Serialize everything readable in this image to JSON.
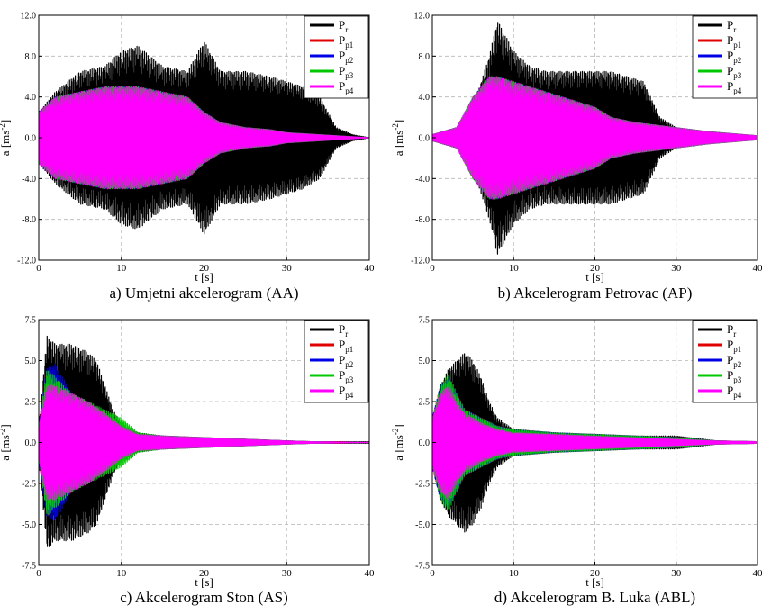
{
  "chart_data": [
    {
      "type": "line",
      "caption": "a) Umjetni akcelerogram (AA)",
      "xlabel": "t [s]",
      "ylabel": "a [ms",
      "ylabel_sup": "-2",
      "ylabel_end": "]",
      "xlim": [
        0,
        40
      ],
      "ylim": [
        -12,
        12
      ],
      "xticks": [
        "0",
        "10",
        "20",
        "30",
        "40"
      ],
      "yticks": [
        "12.0",
        "8.0",
        "4.0",
        "0.0",
        "-4.0",
        "-8.0",
        "-12.0"
      ],
      "grid": true,
      "legend": "top-right",
      "series": [
        {
          "name": "P",
          "sub": "r",
          "color": "#000000",
          "t": [
            0,
            2,
            5,
            8,
            10,
            12,
            15,
            18,
            20,
            22,
            25,
            28,
            30,
            32,
            34,
            36,
            38,
            40
          ],
          "amplitude": [
            2.5,
            4.5,
            6.5,
            7,
            8.5,
            9,
            7,
            6.5,
            9.5,
            6.5,
            6.5,
            6,
            5.5,
            5,
            4,
            1,
            0.3,
            0
          ]
        },
        {
          "name": "P",
          "sub": "p1",
          "color": "#e00000",
          "t": [
            0,
            2,
            5,
            8,
            10,
            12,
            15,
            18,
            20,
            22,
            25,
            28,
            30,
            34,
            36,
            40
          ],
          "amplitude": [
            2.5,
            4,
            4.5,
            5,
            5,
            5,
            4.5,
            4,
            2.5,
            1.5,
            1,
            0.8,
            0.5,
            0.3,
            0.2,
            0
          ]
        },
        {
          "name": "P",
          "sub": "p2",
          "color": "#0000e6",
          "t": [
            0,
            2,
            5,
            8,
            10,
            12,
            15,
            18,
            20,
            22,
            25,
            28,
            30,
            34,
            36,
            40
          ],
          "amplitude": [
            2.5,
            4,
            4.5,
            5,
            5,
            5,
            4.5,
            4,
            2.5,
            1.5,
            1,
            0.8,
            0.5,
            0.3,
            0.2,
            0
          ]
        },
        {
          "name": "P",
          "sub": "p3",
          "color": "#00c800",
          "t": [
            0,
            2,
            5,
            8,
            10,
            12,
            15,
            18,
            20,
            22,
            25,
            28,
            30,
            34,
            36,
            40
          ],
          "amplitude": [
            2.5,
            4,
            4.5,
            5,
            5,
            5,
            4.5,
            4,
            2.5,
            1.5,
            1,
            0.8,
            0.5,
            0.3,
            0.2,
            0
          ]
        },
        {
          "name": "P",
          "sub": "p4",
          "color": "#ff00ff",
          "t": [
            0,
            2,
            5,
            8,
            10,
            12,
            15,
            18,
            20,
            22,
            25,
            28,
            30,
            34,
            36,
            40
          ],
          "amplitude": [
            2.5,
            4,
            4.5,
            5,
            5,
            5,
            4.5,
            4,
            2.5,
            1.5,
            1,
            0.8,
            0.5,
            0.3,
            0.2,
            0
          ]
        }
      ]
    },
    {
      "type": "line",
      "caption": "b) Akcelerogram Petrovac (AP)",
      "xlabel": "t [s]",
      "ylabel": "a [ms",
      "ylabel_sup": "-2",
      "ylabel_end": "]",
      "xlim": [
        0,
        40
      ],
      "ylim": [
        -12,
        12
      ],
      "xticks": [
        "0",
        "10",
        "20",
        "30",
        "40"
      ],
      "yticks": [
        "12.0",
        "8.0",
        "4.0",
        "0.0",
        "-4.0",
        "-8.0",
        "-12.0"
      ],
      "grid": true,
      "legend": "top-right",
      "series": [
        {
          "name": "P",
          "sub": "r",
          "color": "#000000",
          "t": [
            0,
            3,
            5,
            7,
            8,
            10,
            12,
            14,
            16,
            18,
            20,
            22,
            24,
            26,
            28,
            30,
            34,
            40
          ],
          "amplitude": [
            0.3,
            1,
            3,
            8,
            11.5,
            8.5,
            7,
            6.5,
            6.5,
            6.5,
            6.5,
            6.5,
            6,
            5.5,
            2,
            1,
            0.5,
            0.2
          ]
        },
        {
          "name": "P",
          "sub": "p1",
          "color": "#e00000",
          "t": [
            0,
            3,
            5,
            7,
            8,
            10,
            12,
            14,
            16,
            18,
            20,
            22,
            25,
            28,
            30,
            34,
            40
          ],
          "amplitude": [
            0.3,
            1,
            4,
            6,
            6,
            5.5,
            5,
            4.5,
            4,
            3.5,
            3,
            2,
            1.5,
            1.2,
            1,
            0.6,
            0.2
          ]
        },
        {
          "name": "P",
          "sub": "p2",
          "color": "#0000e6",
          "t": [
            0,
            3,
            5,
            7,
            8,
            10,
            12,
            14,
            16,
            18,
            20,
            22,
            25,
            28,
            30,
            34,
            40
          ],
          "amplitude": [
            0.3,
            1,
            4,
            6,
            6,
            5.5,
            5,
            4.5,
            4,
            3.5,
            3,
            2,
            1.5,
            1.2,
            1,
            0.6,
            0.2
          ]
        },
        {
          "name": "P",
          "sub": "p3",
          "color": "#00c800",
          "t": [
            0,
            3,
            5,
            7,
            8,
            10,
            12,
            14,
            16,
            18,
            20,
            22,
            25,
            28,
            30,
            34,
            40
          ],
          "amplitude": [
            0.3,
            1,
            4,
            6,
            6,
            5.5,
            5,
            4.5,
            4,
            3.5,
            3,
            2,
            1.5,
            1.2,
            1,
            0.6,
            0.2
          ]
        },
        {
          "name": "P",
          "sub": "p4",
          "color": "#ff00ff",
          "t": [
            0,
            3,
            5,
            7,
            8,
            10,
            12,
            14,
            16,
            18,
            20,
            22,
            25,
            28,
            30,
            34,
            40
          ],
          "amplitude": [
            0.3,
            1,
            4,
            6,
            6,
            5.5,
            5,
            4.5,
            4,
            3.5,
            3,
            2,
            1.5,
            1.2,
            1,
            0.6,
            0.2
          ]
        }
      ]
    },
    {
      "type": "line",
      "caption": "c) Akcelerogram Ston (AS)",
      "xlabel": "t [s]",
      "ylabel": "a [ms",
      "ylabel_sup": "-2",
      "ylabel_end": "]",
      "xlim": [
        0,
        40
      ],
      "ylim": [
        -7.5,
        7.5
      ],
      "xticks": [
        "0",
        "10",
        "20",
        "30",
        "40"
      ],
      "yticks": [
        "7.5",
        "5.0",
        "2.5",
        "0.0",
        "-2.5",
        "-5.0",
        "-7.5"
      ],
      "grid": true,
      "legend": "top-right",
      "series": [
        {
          "name": "P",
          "sub": "r",
          "color": "#000000",
          "t": [
            0,
            1,
            2,
            4,
            6,
            7,
            8,
            9,
            10,
            12,
            15,
            20,
            25,
            30,
            33,
            40
          ],
          "amplitude": [
            1,
            6.5,
            6,
            6,
            5.5,
            5,
            3.5,
            2,
            1,
            0.6,
            0.4,
            0.3,
            0.2,
            0.1,
            0.05,
            0.05
          ]
        },
        {
          "name": "P",
          "sub": "p1",
          "color": "#e00000",
          "t": [
            0,
            1,
            2,
            4,
            6,
            8,
            10,
            12,
            15,
            20,
            25,
            30,
            33,
            36,
            40
          ],
          "amplitude": [
            1,
            4.5,
            4,
            3,
            2,
            1.5,
            1,
            0.5,
            0.4,
            0.3,
            0.2,
            0.1,
            0.05,
            0.05,
            0
          ]
        },
        {
          "name": "P",
          "sub": "p2",
          "color": "#0000e6",
          "t": [
            0,
            1,
            2,
            4,
            6,
            8,
            10,
            12,
            15,
            20,
            25,
            30,
            33,
            40
          ],
          "amplitude": [
            1,
            4.5,
            4.8,
            3,
            2,
            1.5,
            1,
            0.5,
            0.4,
            0.3,
            0.2,
            0.1,
            0.05,
            0
          ]
        },
        {
          "name": "P",
          "sub": "p3",
          "color": "#00c800",
          "t": [
            0,
            1,
            2,
            4,
            6,
            8,
            10,
            12,
            15,
            20,
            25,
            30,
            33,
            40
          ],
          "amplitude": [
            1,
            4.5,
            4,
            3,
            2.5,
            2,
            1.5,
            0.6,
            0.4,
            0.3,
            0.2,
            0.1,
            0.05,
            0
          ]
        },
        {
          "name": "P",
          "sub": "p4",
          "color": "#ff00ff",
          "t": [
            0,
            1,
            2,
            4,
            6,
            8,
            10,
            12,
            15,
            20,
            25,
            30,
            33,
            40
          ],
          "amplitude": [
            1,
            3.5,
            3.5,
            3,
            2.5,
            1.8,
            1,
            0.5,
            0.4,
            0.3,
            0.2,
            0.1,
            0.05,
            0
          ]
        }
      ]
    },
    {
      "type": "line",
      "caption": "d) Akcelerogram B. Luka (ABL)",
      "xlabel": "t [s]",
      "ylabel": "a [ms",
      "ylabel_sup": "-2",
      "ylabel_end": "]",
      "xlim": [
        0,
        40
      ],
      "ylim": [
        -7.5,
        7.5
      ],
      "xticks": [
        "0",
        "10",
        "20",
        "30",
        "40"
      ],
      "yticks": [
        "7.5",
        "5.0",
        "2.5",
        "0.0",
        "-2.5",
        "-5.0",
        "-7.5"
      ],
      "grid": true,
      "legend": "top-right",
      "series": [
        {
          "name": "P",
          "sub": "r",
          "color": "#000000",
          "t": [
            0,
            1,
            2,
            3,
            4,
            5,
            6,
            7,
            8,
            10,
            15,
            20,
            25,
            30,
            35,
            40
          ],
          "amplitude": [
            1.5,
            3.5,
            4.5,
            5,
            5.5,
            5,
            4,
            2.5,
            1.5,
            0.8,
            0.5,
            0.5,
            0.4,
            0.4,
            0.1,
            0.05
          ]
        },
        {
          "name": "P",
          "sub": "p1",
          "color": "#e00000",
          "t": [
            0,
            1,
            2,
            3,
            4,
            6,
            8,
            10,
            15,
            20,
            25,
            30,
            35,
            40
          ],
          "amplitude": [
            1.5,
            3.5,
            4,
            3,
            2,
            1.5,
            1,
            0.8,
            0.6,
            0.5,
            0.4,
            0.3,
            0.1,
            0.05
          ]
        },
        {
          "name": "P",
          "sub": "p2",
          "color": "#0000e6",
          "t": [
            0,
            1,
            2,
            3,
            4,
            6,
            8,
            10,
            15,
            20,
            25,
            30,
            35,
            40
          ],
          "amplitude": [
            1.5,
            3.5,
            4,
            3,
            2,
            1.5,
            1,
            0.8,
            0.6,
            0.5,
            0.4,
            0.3,
            0.1,
            0.05
          ]
        },
        {
          "name": "P",
          "sub": "p3",
          "color": "#00c800",
          "t": [
            0,
            1,
            2,
            3,
            4,
            6,
            8,
            10,
            15,
            20,
            25,
            30,
            35,
            40
          ],
          "amplitude": [
            1.5,
            3.5,
            4.2,
            3,
            2,
            1.5,
            1,
            0.8,
            0.6,
            0.5,
            0.4,
            0.3,
            0.1,
            0.05
          ]
        },
        {
          "name": "P",
          "sub": "p4",
          "color": "#ff00ff",
          "t": [
            0,
            1,
            2,
            3,
            4,
            6,
            8,
            10,
            15,
            20,
            25,
            30,
            35,
            40
          ],
          "amplitude": [
            1.5,
            3,
            3.5,
            2.5,
            1.8,
            1.2,
            0.8,
            0.6,
            0.5,
            0.4,
            0.3,
            0.2,
            0.1,
            0.05
          ]
        }
      ]
    }
  ]
}
